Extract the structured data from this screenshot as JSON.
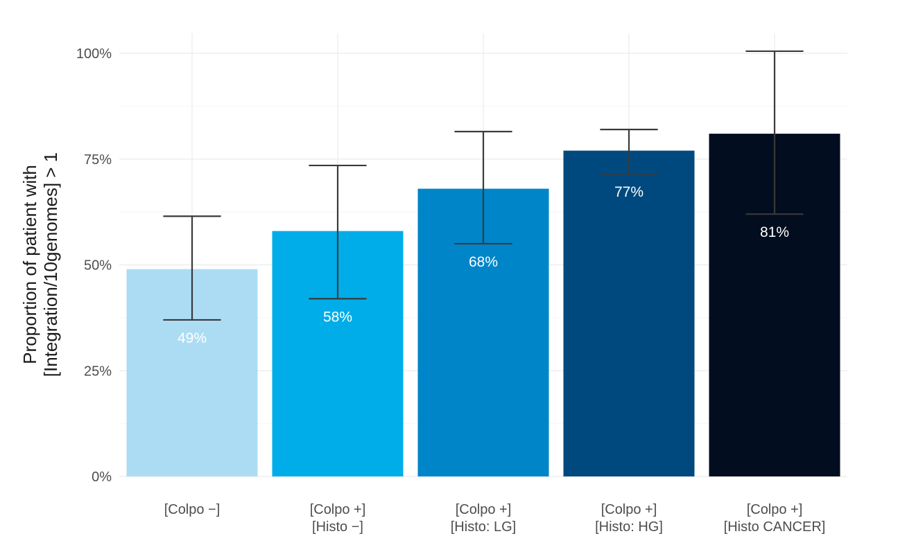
{
  "chart_data": {
    "type": "bar",
    "categories": [
      [
        "[Colpo −]"
      ],
      [
        "[Colpo +]",
        "[Histo −]"
      ],
      [
        "[Colpo +]",
        "[Histo: LG]"
      ],
      [
        "[Colpo +]",
        "[Histo: HG]"
      ],
      [
        "[Colpo +]",
        "[Histo CANCER]"
      ]
    ],
    "values": [
      49,
      58,
      68,
      77,
      81
    ],
    "value_labels": [
      "49%",
      "58%",
      "68%",
      "77%",
      "81%"
    ],
    "error_low": [
      37,
      42,
      55,
      71.5,
      62
    ],
    "error_high": [
      61.5,
      73.5,
      81.5,
      82,
      100.5
    ],
    "colors": [
      "#acdcf4",
      "#00ade8",
      "#0085c8",
      "#00497e",
      "#020d1f"
    ],
    "ylabel": [
      "Proportion of patient with",
      "[Integration/10genomes] > 1"
    ],
    "xlabel": "",
    "title": "",
    "ylim": [
      0,
      100
    ],
    "yticks": [
      0,
      25,
      50,
      75,
      100
    ],
    "ytick_labels": [
      "0%",
      "25%",
      "50%",
      "75%",
      "100%"
    ],
    "grid": true,
    "legend": "none"
  }
}
